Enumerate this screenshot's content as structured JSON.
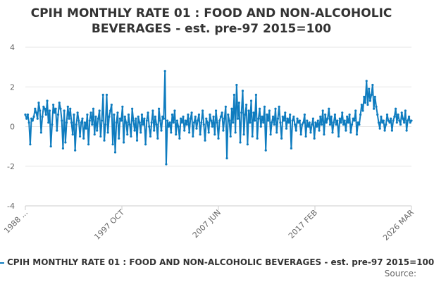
{
  "chart_data": {
    "type": "line",
    "title_line1": "CPIH MONTHLY RATE 01 : FOOD AND NON-ALCOHOLIC",
    "title_line2": "BEVERAGES - est. pre-97 2015=100",
    "ylim": [
      -4,
      4
    ],
    "yticks": [
      "4",
      "2",
      "0",
      "-2",
      "-4"
    ],
    "xticks": [
      "1988 ...",
      "1997 OCT",
      "2007 JUN",
      "2017 FEB",
      "2026 MAR"
    ],
    "grid": true,
    "series": [
      {
        "name": "CPIH MONTHLY RATE 01 : FOOD AND NON-ALCOHOLIC BEVERAGES - est. pre-97 2015=100",
        "color": "#0f7cbf",
        "values": [
          0.6,
          0.4,
          0.6,
          0.2,
          -0.9,
          0.4,
          0.3,
          0.5,
          0.9,
          0.7,
          0.4,
          1.2,
          0.8,
          -0.3,
          0.5,
          1.0,
          0.9,
          0.6,
          1.3,
          0.2,
          0.8,
          -1.0,
          0.1,
          1.1,
          0.7,
          0.9,
          -0.2,
          0.6,
          1.2,
          0.9,
          0.3,
          -1.1,
          0.8,
          -0.8,
          0.2,
          1.0,
          0.4,
          0.9,
          0.2,
          -0.4,
          0.6,
          -1.2,
          0.1,
          0.7,
          0.3,
          -0.5,
          0.2,
          0.4,
          -0.6,
          0.2,
          -0.1,
          0.6,
          -0.9,
          0.3,
          0.7,
          0.1,
          0.9,
          -0.4,
          0.5,
          -0.2,
          0.4,
          0.8,
          -0.5,
          0.3,
          1.6,
          -0.7,
          0.1,
          1.6,
          -0.3,
          0.5,
          0.8,
          1.1,
          -0.9,
          0.6,
          -1.3,
          0.2,
          0.7,
          -0.6,
          0.4,
          0.3,
          1.0,
          -0.8,
          0.5,
          0.2,
          -0.4,
          0.6,
          0.1,
          -0.5,
          0.9,
          0.3,
          -0.2,
          0.4,
          -0.7,
          0.5,
          0.2,
          -0.3,
          0.6,
          0.1,
          0.4,
          -0.9,
          0.3,
          0.7,
          0.0,
          -0.5,
          0.2,
          0.8,
          -0.2,
          0.5,
          0.1,
          -0.6,
          0.9,
          0.3,
          -0.2,
          0.5,
          0.4,
          2.8,
          -1.9,
          0.3,
          0.0,
          0.2,
          -0.3,
          0.6,
          0.2,
          0.8,
          -0.4,
          0.3,
          0.0,
          -0.6,
          0.4,
          0.2,
          0.5,
          -0.2,
          0.3,
          0.1,
          0.6,
          -0.3,
          0.4,
          0.7,
          -0.5,
          0.2,
          0.5,
          -0.1,
          0.3,
          0.6,
          -0.4,
          0.2,
          0.8,
          0.1,
          -0.7,
          0.4,
          0.2,
          -0.3,
          0.6,
          0.3,
          0.0,
          0.5,
          -0.4,
          0.8,
          0.2,
          -0.6,
          0.3,
          0.5,
          0.7,
          -0.2,
          0.4,
          1.0,
          -1.6,
          0.6,
          0.3,
          -0.5,
          0.9,
          0.2,
          1.6,
          -0.3,
          2.1,
          0.4,
          1.2,
          -0.8,
          0.7,
          1.8,
          -0.4,
          0.6,
          1.1,
          -0.9,
          0.8,
          0.2,
          1.3,
          -0.5,
          0.7,
          0.3,
          1.6,
          -0.6,
          0.4,
          0.9,
          0.0,
          0.5,
          0.2,
          1.0,
          -1.2,
          0.6,
          0.3,
          0.8,
          -0.4,
          0.2,
          0.5,
          0.1,
          0.9,
          -0.3,
          0.4,
          1.0,
          0.2,
          -0.6,
          0.5,
          0.3,
          0.7,
          -0.1,
          0.4,
          0.2,
          0.6,
          -1.1,
          0.3,
          0.5,
          0.1,
          -0.2,
          0.4,
          0.2,
          0.3,
          -0.4,
          0.1,
          0.2,
          0.6,
          -0.5,
          0.3,
          0.0,
          0.2,
          -0.3,
          0.1,
          0.4,
          -0.6,
          0.2,
          0.0,
          0.3,
          -0.2,
          0.5,
          0.1,
          0.8,
          -0.4,
          0.6,
          0.2,
          0.4,
          0.9,
          0.1,
          0.5,
          -0.3,
          0.2,
          0.6,
          0.1,
          0.3,
          -0.5,
          0.4,
          0.2,
          0.7,
          0.1,
          0.3,
          -0.2,
          0.5,
          0.2,
          0.6,
          -0.3,
          0.1,
          0.4,
          0.3,
          0.8,
          -0.4,
          0.2,
          0.1,
          0.6,
          1.1,
          0.8,
          1.5,
          1.2,
          2.3,
          1.1,
          1.9,
          1.3,
          1.6,
          2.1,
          0.9,
          1.5,
          1.0,
          0.6,
          0.2,
          -0.1,
          0.5,
          0.2,
          0.3,
          -0.2,
          0.1,
          0.6,
          0.3,
          0.2,
          0.4,
          -0.2,
          0.3,
          0.5,
          0.9,
          0.2,
          0.6,
          0.3,
          0.1,
          0.7,
          0.4,
          0.2,
          0.8,
          -0.2,
          0.3,
          0.5,
          0.2,
          0.3
        ]
      }
    ],
    "legend_text": "CPIH MONTHLY RATE 01 : FOOD AND NON-ALCOHOLIC BEVERAGES - est. pre-97 2015=100",
    "source_label": "Source:"
  }
}
